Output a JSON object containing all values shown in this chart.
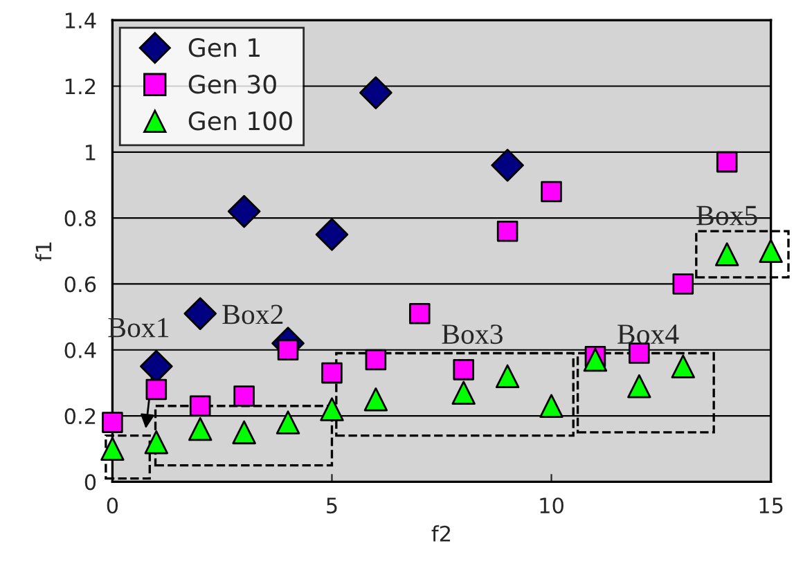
{
  "chart_data": {
    "type": "scatter",
    "xlabel": "f2",
    "ylabel": "f1",
    "xlim": [
      0,
      15
    ],
    "xticks": [
      0,
      5,
      10,
      15
    ],
    "ylim": [
      0,
      1.4
    ],
    "yticks": [
      0,
      0.2,
      0.4,
      0.6,
      0.8,
      1,
      1.2,
      1.4
    ],
    "grid": "y",
    "legend": "top left",
    "series": [
      {
        "name": "Gen 1",
        "color": "#000080",
        "marker": "diamond",
        "x": [
          1,
          2,
          3,
          4,
          5,
          6,
          9
        ],
        "values": [
          0.35,
          0.51,
          0.82,
          0.42,
          0.75,
          1.18,
          0.96
        ]
      },
      {
        "name": "Gen 30",
        "color": "#ff00ff",
        "marker": "square",
        "x": [
          0,
          1,
          2,
          3,
          4,
          5,
          6,
          7,
          8,
          9,
          10,
          11,
          12,
          13,
          14
        ],
        "values": [
          0.18,
          0.28,
          0.23,
          0.26,
          0.4,
          0.33,
          0.37,
          0.51,
          0.34,
          0.76,
          0.88,
          0.38,
          0.39,
          0.6,
          0.97
        ]
      },
      {
        "name": "Gen 100",
        "color": "#00ff00",
        "marker": "triangle",
        "x": [
          0,
          1,
          2,
          3,
          4,
          5,
          6,
          8,
          9,
          10,
          11,
          12,
          13,
          14,
          15
        ],
        "values": [
          0.1,
          0.12,
          0.16,
          0.15,
          0.18,
          0.22,
          0.25,
          0.27,
          0.32,
          0.23,
          0.37,
          0.29,
          0.35,
          0.69,
          0.7
        ]
      }
    ],
    "annotations": [
      "Box1",
      "Box2",
      "Box3",
      "Box4",
      "Box5"
    ]
  }
}
